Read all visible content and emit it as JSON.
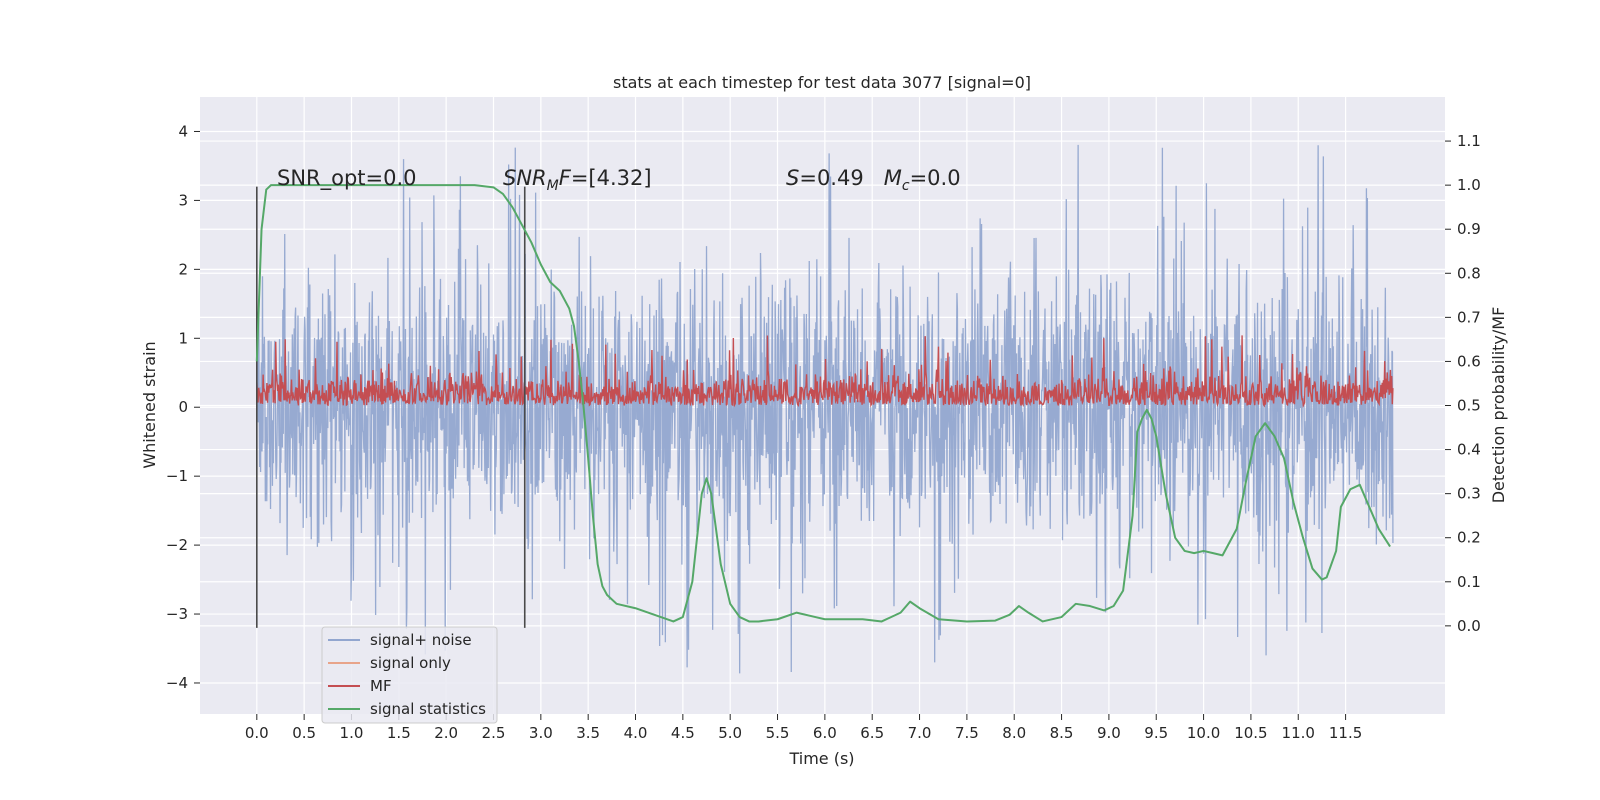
{
  "chart_data": {
    "type": "line",
    "title": "stats at each timestep for test data 3077 [signal=0]",
    "xlabel": "Time (s)",
    "ylabel_left": "Whitened strain",
    "ylabel_right": "Detection probability/MF",
    "xlim": [
      -0.6,
      12.55
    ],
    "ylim_left": [
      -4.45,
      4.5
    ],
    "ylim_right": [
      -0.2,
      1.2
    ],
    "x_ticks": [
      0.0,
      0.5,
      1.0,
      1.5,
      2.0,
      2.5,
      3.0,
      3.5,
      4.0,
      4.5,
      5.0,
      5.5,
      6.0,
      6.5,
      7.0,
      7.5,
      8.0,
      8.5,
      9.0,
      9.5,
      10.0,
      10.5,
      11.0,
      11.5
    ],
    "x_tick_labels": [
      "0.0",
      "0.5",
      "1.0",
      "1.5",
      "2.0",
      "2.5",
      "3.0",
      "3.5",
      "4.0",
      "4.5",
      "5.0",
      "5.5",
      "6.0",
      "6.5",
      "7.0",
      "7.5",
      "8.0",
      "8.5",
      "9.0",
      "9.5",
      "10.0",
      "10.5",
      "11.0",
      "11.5"
    ],
    "y_left_ticks": [
      -4,
      -3,
      -2,
      -1,
      0,
      1,
      2,
      3,
      4
    ],
    "y_left_tick_labels": [
      "−4",
      "−3",
      "−2",
      "−1",
      "0",
      "1",
      "2",
      "3",
      "4"
    ],
    "y_right_ticks": [
      0.0,
      0.1,
      0.2,
      0.3,
      0.4,
      0.5,
      0.6,
      0.7,
      0.8,
      0.9,
      1.0,
      1.1
    ],
    "y_right_tick_labels": [
      "0.0",
      "0.1",
      "0.2",
      "0.3",
      "0.4",
      "0.5",
      "0.6",
      "0.7",
      "0.8",
      "0.9",
      "1.0",
      "1.1"
    ],
    "grid": true,
    "legend_position": "lower-left",
    "annotations": {
      "snr_opt": "SNR_opt=0.0",
      "snr_mf": "=[4.32]",
      "s_mc": "=0.49   ",
      "mc_val": "=0.0"
    },
    "vlines": [
      0.0,
      2.83
    ],
    "vline_ymin": -3.2,
    "vline_ymax": 3.2,
    "series": [
      {
        "name": "signal+ noise",
        "color": "#92a6cf",
        "axis": "left",
        "t_range": [
          0.0,
          12.0
        ],
        "min": -4.05,
        "max": 4.1,
        "typical_range": [
          -2.4,
          2.6
        ]
      },
      {
        "name": "signal only",
        "color": "#e8a48a",
        "axis": "left"
      },
      {
        "name": "MF",
        "color": "#c44e52",
        "axis": "right",
        "t_range": [
          0.0,
          12.0
        ],
        "baseline": 0.5,
        "typical_max": 0.62,
        "peak_max": 0.66
      },
      {
        "name": "signal statistics",
        "color": "#55a868",
        "axis": "right",
        "x": [
          0.0,
          0.05,
          0.1,
          0.15,
          0.2,
          0.3,
          0.5,
          1.0,
          1.5,
          2.0,
          2.3,
          2.5,
          2.6,
          2.7,
          2.8,
          2.9,
          3.0,
          3.1,
          3.2,
          3.3,
          3.35,
          3.4,
          3.45,
          3.5,
          3.55,
          3.6,
          3.65,
          3.7,
          3.8,
          4.0,
          4.2,
          4.4,
          4.5,
          4.6,
          4.65,
          4.7,
          4.75,
          4.8,
          4.85,
          4.9,
          5.0,
          5.1,
          5.2,
          5.3,
          5.5,
          5.7,
          5.9,
          6.0,
          6.2,
          6.4,
          6.6,
          6.8,
          6.9,
          7.0,
          7.2,
          7.5,
          7.8,
          7.95,
          8.05,
          8.15,
          8.3,
          8.5,
          8.65,
          8.8,
          8.95,
          9.05,
          9.15,
          9.25,
          9.3,
          9.35,
          9.4,
          9.45,
          9.5,
          9.6,
          9.7,
          9.8,
          9.9,
          10.0,
          10.1,
          10.2,
          10.35,
          10.45,
          10.55,
          10.65,
          10.75,
          10.85,
          10.95,
          11.05,
          11.15,
          11.25,
          11.3,
          11.4,
          11.45,
          11.55,
          11.65,
          11.75,
          11.85,
          11.97
        ],
        "values": [
          0.6,
          0.9,
          0.99,
          1.0,
          1.0,
          1.0,
          1.0,
          1.0,
          1.0,
          1.0,
          1.0,
          0.995,
          0.98,
          0.95,
          0.91,
          0.87,
          0.82,
          0.78,
          0.76,
          0.72,
          0.68,
          0.6,
          0.5,
          0.38,
          0.25,
          0.14,
          0.09,
          0.07,
          0.05,
          0.04,
          0.025,
          0.01,
          0.02,
          0.1,
          0.2,
          0.3,
          0.335,
          0.3,
          0.22,
          0.14,
          0.05,
          0.02,
          0.01,
          0.01,
          0.015,
          0.03,
          0.02,
          0.015,
          0.015,
          0.015,
          0.01,
          0.03,
          0.055,
          0.04,
          0.015,
          0.01,
          0.012,
          0.025,
          0.045,
          0.03,
          0.01,
          0.02,
          0.05,
          0.045,
          0.035,
          0.045,
          0.08,
          0.25,
          0.44,
          0.47,
          0.49,
          0.47,
          0.43,
          0.3,
          0.2,
          0.17,
          0.165,
          0.17,
          0.165,
          0.16,
          0.22,
          0.33,
          0.43,
          0.46,
          0.43,
          0.38,
          0.28,
          0.2,
          0.13,
          0.105,
          0.11,
          0.17,
          0.27,
          0.31,
          0.32,
          0.27,
          0.22,
          0.18
        ]
      }
    ]
  }
}
